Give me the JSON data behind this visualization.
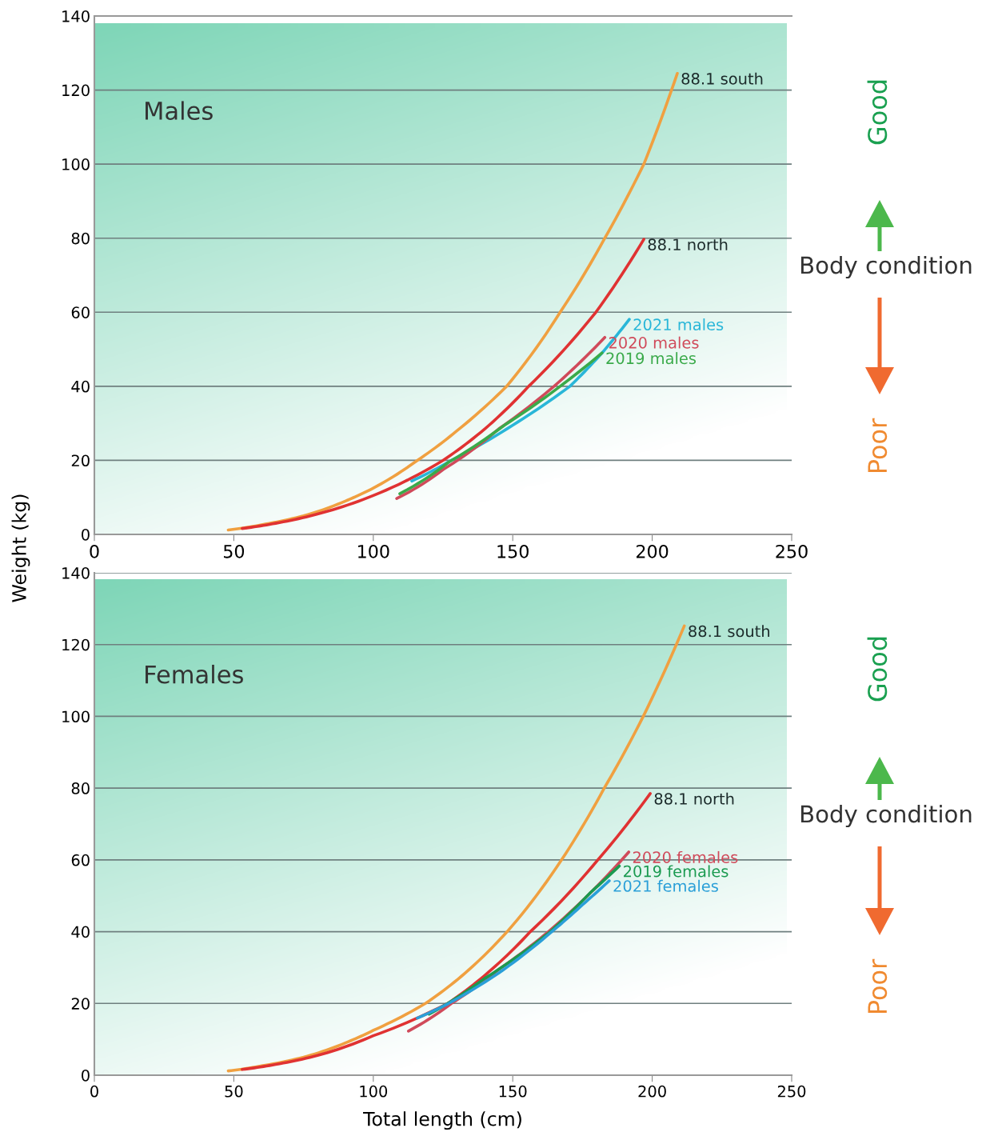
{
  "chart_data": [
    {
      "type": "line",
      "title": "Males",
      "ylabel": "Weight (kg)",
      "xlim": [
        0,
        250
      ],
      "ylim": [
        0,
        140
      ],
      "xticks": [
        0,
        50,
        100,
        150,
        200,
        250
      ],
      "yticks": [
        0,
        20,
        40,
        60,
        80,
        100,
        120,
        140
      ],
      "grid": "y",
      "marker": "none",
      "line_style": "solid",
      "series": [
        {
          "name": "88.1 south",
          "color": "#f0a040",
          "x": [
            48,
            60,
            75,
            90,
            100,
            115.8,
            130,
            147.8,
            167,
            183,
            197,
            209
          ],
          "values": [
            1.2,
            2.6,
            5,
            9,
            12.5,
            20,
            28,
            40,
            60,
            80,
            100,
            124.5
          ]
        },
        {
          "name": "88.1 north",
          "color": "#e03232",
          "x": [
            53,
            65,
            80,
            100,
            125,
            140,
            155.7,
            179.8,
            197
          ],
          "values": [
            1.6,
            3,
            5.5,
            10.5,
            20,
            28.5,
            40,
            60,
            79.7
          ]
        },
        {
          "name": "2021 males",
          "color": "#29b6d8",
          "x": [
            113.8,
            128,
            150,
            170.5,
            182,
            191.8
          ],
          "values": [
            14.4,
            20,
            29.5,
            40,
            49,
            58.1
          ]
        },
        {
          "name": "2020 males",
          "color": "#d04a5a",
          "x": [
            108.4,
            125,
            145,
            164.8,
            183
          ],
          "values": [
            9.7,
            17.5,
            28.5,
            40,
            53.2
          ]
        },
        {
          "name": "2019 males",
          "color": "#3aaa4a",
          "x": [
            109.5,
            127,
            147,
            167,
            182
          ],
          "values": [
            11,
            19.5,
            29.5,
            40,
            49
          ]
        }
      ],
      "annotations": [
        "Good",
        "Body condition",
        "Poor"
      ]
    },
    {
      "type": "line",
      "title": "Females",
      "xlabel": "Total length (cm)",
      "xlim": [
        0,
        250
      ],
      "ylim": [
        0,
        140
      ],
      "xticks": [
        0,
        50,
        100,
        150,
        200,
        250
      ],
      "yticks": [
        0,
        20,
        40,
        60,
        80,
        100,
        120,
        140
      ],
      "grid": "y",
      "marker": "none",
      "line_style": "solid",
      "series": [
        {
          "name": "88.1 south",
          "color": "#f0a040",
          "x": [
            48,
            60,
            75,
            90,
            100,
            118.7,
            133,
            148,
            167.5,
            182.8,
            196.8,
            211.5
          ],
          "values": [
            1.2,
            2.6,
            5,
            9,
            12.5,
            20,
            28.5,
            40,
            60,
            80,
            100,
            125.2
          ]
        },
        {
          "name": "88.1 north",
          "color": "#e03232",
          "x": [
            53,
            65,
            80,
            100,
            126.7,
            141,
            156.3,
            180.5,
            199.3
          ],
          "values": [
            1.6,
            3,
            5.5,
            11,
            20,
            28.5,
            40,
            60,
            78.5
          ]
        },
        {
          "name": "2020 females",
          "color": "#d04a5a",
          "x": [
            112.6,
            128,
            145,
            162.8,
            191.6
          ],
          "values": [
            12.3,
            20,
            29.5,
            40,
            62.2
          ]
        },
        {
          "name": "2019 females",
          "color": "#1a9a50",
          "x": [
            120,
            140,
            163.5,
            178,
            188.2
          ],
          "values": [
            17,
            27,
            40,
            51,
            58.3
          ]
        },
        {
          "name": "2021 females",
          "color": "#2a9fd8",
          "x": [
            115.8,
            127,
            145,
            164,
            175,
            184.6
          ],
          "values": [
            15.9,
            20,
            28.5,
            40,
            47.5,
            54.2
          ]
        }
      ],
      "annotations": [
        "Good",
        "Body condition",
        "Poor"
      ]
    }
  ]
}
